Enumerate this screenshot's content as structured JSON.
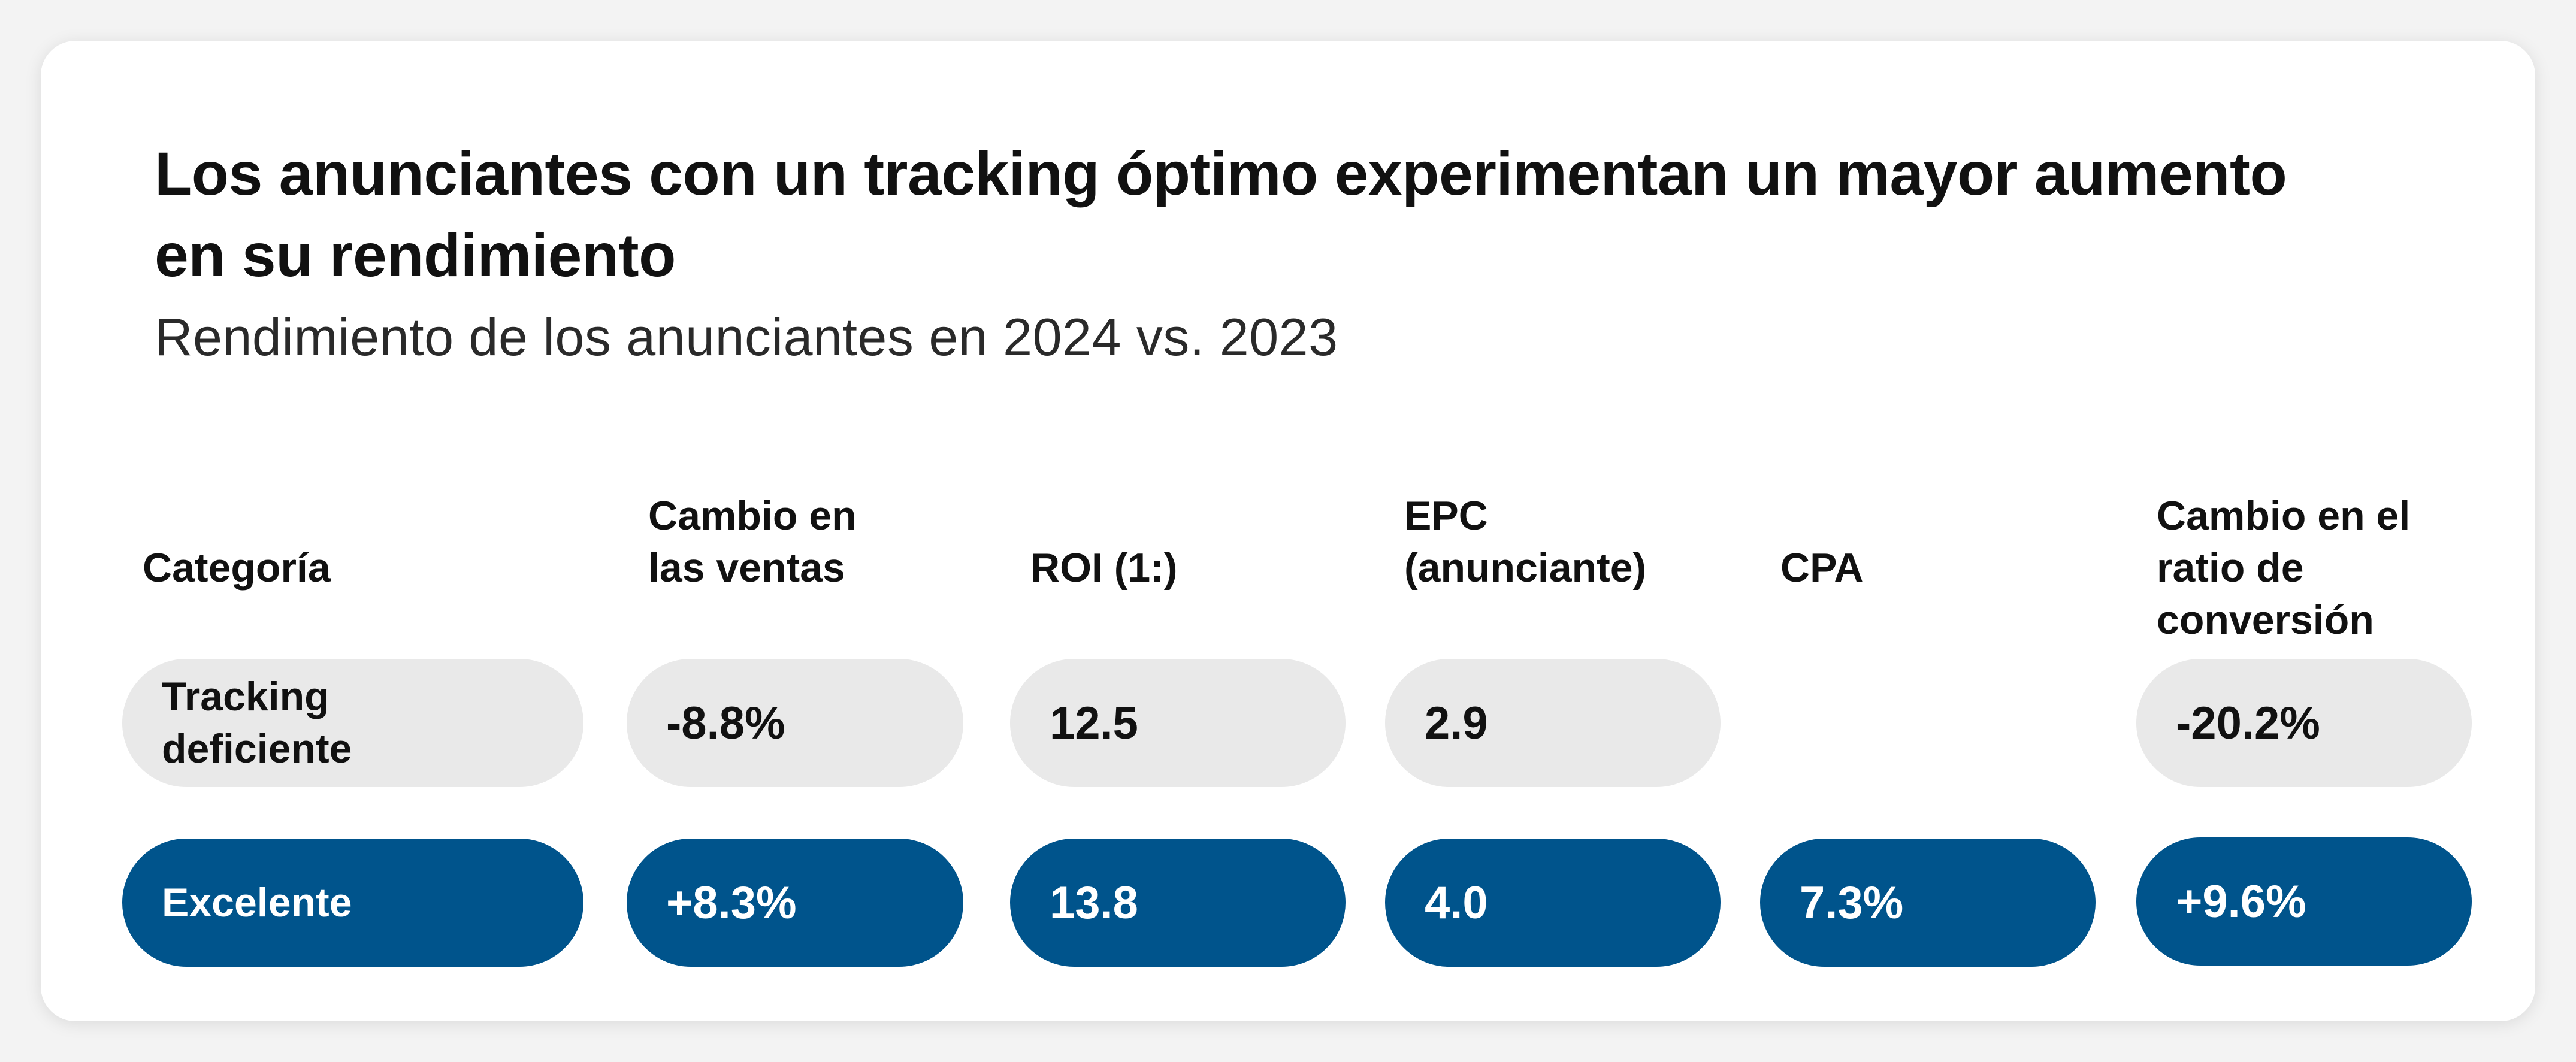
{
  "title": "Los anunciantes con un tracking óptimo experimentan un mayor aumento en su rendimiento",
  "subtitle": "Rendimiento de los anunciantes en 2024 vs. 2023",
  "colors": {
    "card_background": "#ffffff",
    "page_background": "#f3f3f3",
    "poor_row": "#e9e9e9",
    "excellent_row": "#00548c",
    "excellent_text": "#ffffff",
    "text": "#111111"
  },
  "chart_data": {
    "type": "table",
    "title": "Los anunciantes con un tracking óptimo experimentan un mayor aumento en su rendimiento",
    "subtitle": "Rendimiento de los anunciantes en 2024 vs. 2023",
    "columns": [
      "Categoría",
      "Cambio en\nlas ventas",
      "ROI (1:)",
      "EPC\n(anunciante)",
      "CPA",
      "Cambio en el\nratio de\nconversión"
    ],
    "rows": [
      {
        "category": "Tracking\ndeficiente",
        "values": [
          "-8.8%",
          "12.5",
          "2.9",
          "",
          "-20.2%"
        ]
      },
      {
        "category": "Excelente",
        "values": [
          "+8.3%",
          "13.8",
          "4.0",
          "7.3%",
          "+9.6%"
        ]
      }
    ]
  }
}
